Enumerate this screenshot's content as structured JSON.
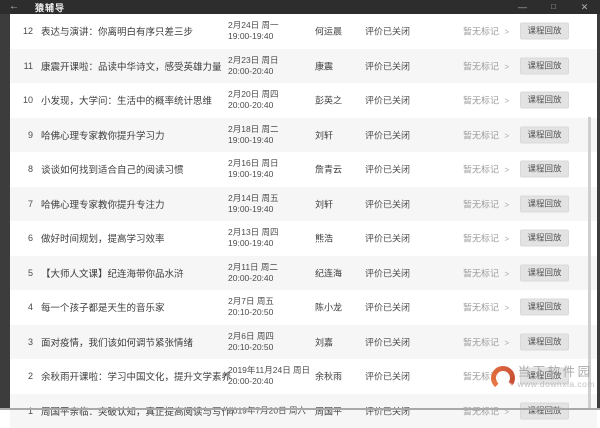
{
  "window": {
    "back": "←",
    "title": "猿辅导",
    "minimize": "—",
    "maximize": "□",
    "close": "✕"
  },
  "labels": {
    "evaluation": "评价已关闭",
    "mark": "暂无标记",
    "chevron": ">",
    "replay": "课程回放"
  },
  "courses": [
    {
      "num": "12",
      "title": "表达与演讲：你离明白有序只差三步",
      "date": "2月24日 周一",
      "time": "19:00-19:40",
      "teacher": "何运晨"
    },
    {
      "num": "11",
      "title": "康震开课啦：品读中华诗文，感受英雄力量",
      "date": "2月23日 周日",
      "time": "20:00-20:40",
      "teacher": "康震"
    },
    {
      "num": "10",
      "title": "小发现，大学问：生活中的概率统计思维",
      "date": "2月20日 周四",
      "time": "20:00-20:40",
      "teacher": "彭英之"
    },
    {
      "num": "9",
      "title": "哈佛心理专家教你提升学习力",
      "date": "2月18日 周二",
      "time": "19:00-19:40",
      "teacher": "刘轩"
    },
    {
      "num": "8",
      "title": "谈谈如何找到适合自己的阅读习惯",
      "date": "2月16日 周日",
      "time": "19:00-19:40",
      "teacher": "詹青云"
    },
    {
      "num": "7",
      "title": "哈佛心理专家教你提升专注力",
      "date": "2月14日 周五",
      "time": "19:00-19:40",
      "teacher": "刘轩"
    },
    {
      "num": "6",
      "title": "做好时间规划，提高学习效率",
      "date": "2月13日 周四",
      "time": "19:00-19:40",
      "teacher": "熊浩"
    },
    {
      "num": "5",
      "title": "【大师人文课】纪连海带你品水浒",
      "date": "2月11日 周二",
      "time": "20:00-20:40",
      "teacher": "纪连海"
    },
    {
      "num": "4",
      "title": "每一个孩子都是天生的音乐家",
      "date": "2月7日 周五",
      "time": "20:10-20:50",
      "teacher": "陈小龙"
    },
    {
      "num": "3",
      "title": "面对疫情，我们该如何调节紧张情绪",
      "date": "2月6日 周四",
      "time": "20:10-20:50",
      "teacher": "刘嘉"
    },
    {
      "num": "2",
      "title": "余秋雨开课啦：学习中国文化，提升文学素养",
      "date": "2019年11月24日 周日",
      "time": "20:00-20:40",
      "teacher": "余秋雨"
    },
    {
      "num": "1",
      "title": "周国平亲临：突破认知，真正提高阅读与写作能力",
      "date": "2019年7月20日 周六",
      "time": "",
      "teacher": "周国平"
    }
  ],
  "watermark": {
    "site_name": "当下软件园",
    "site_url": "www.downxia.com"
  },
  "colors": {
    "titlebar": "#2d2d2d",
    "frame_strip": "#3c3c3c",
    "row_alt": "#f6f6f6",
    "button_bg": "#e3e3e3",
    "mark_text": "#9b9b9b",
    "watermark_accent": "#d9542e"
  }
}
